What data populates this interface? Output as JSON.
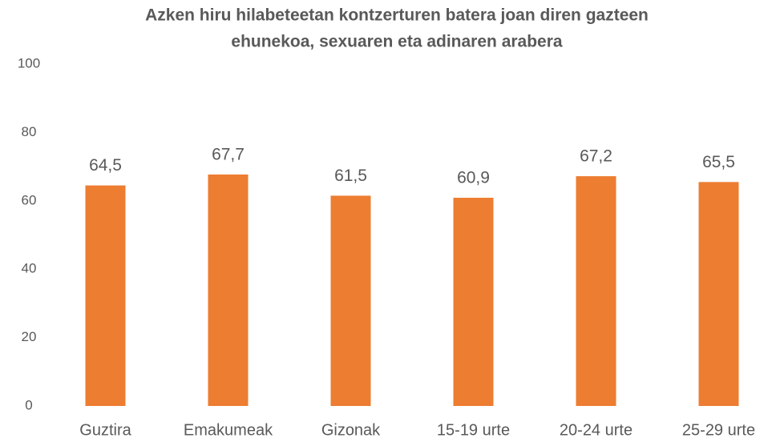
{
  "chart_data": {
    "type": "bar",
    "title": [
      "Azken hiru hilabeteetan kontzerturen batera joan diren gazteen",
      "ehunekoa, sexuaren eta adinaren arabera"
    ],
    "categories": [
      "Guztira",
      "Emakumeak",
      "Gizonak",
      "15-19 urte",
      "20-24 urte",
      "25-29 urte"
    ],
    "values": [
      64.5,
      67.7,
      61.5,
      60.9,
      67.2,
      65.5
    ],
    "value_labels": [
      "64,5",
      "67,7",
      "61,5",
      "60,9",
      "67,2",
      "65,5"
    ],
    "color": "#ed7d31",
    "ylim": [
      0,
      100
    ],
    "yticks": [
      0,
      20,
      40,
      60,
      80,
      100
    ],
    "grid": false
  }
}
